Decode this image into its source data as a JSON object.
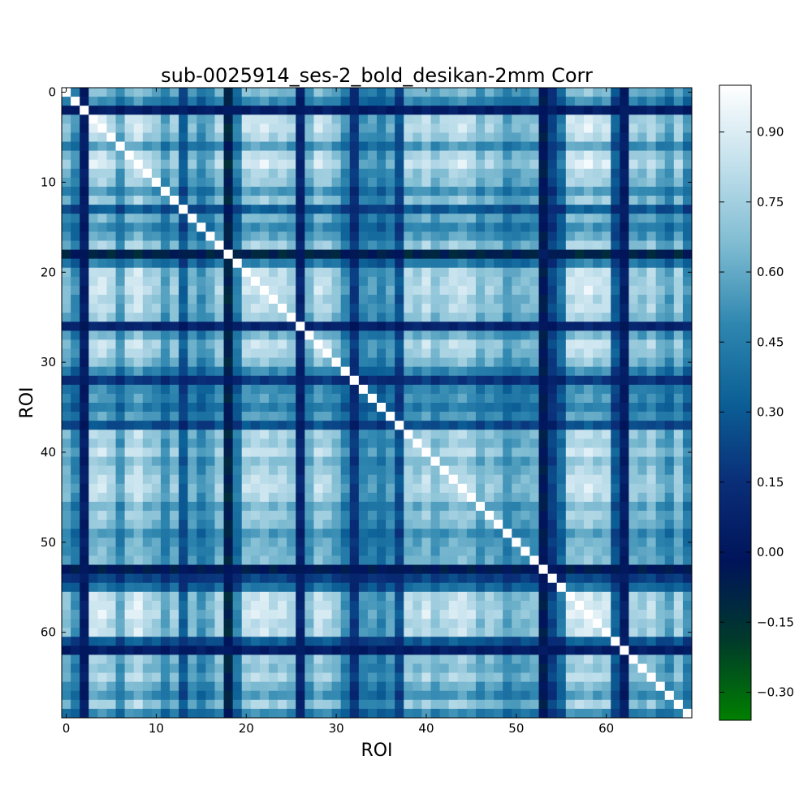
{
  "chart_data": {
    "type": "heatmap",
    "title": "sub-0025914_ses-2_bold_desikan-2mm Corr",
    "xlabel": "ROI",
    "ylabel": "ROI",
    "n": 70,
    "x_ticks": [
      "0",
      "10",
      "20",
      "30",
      "40",
      "50",
      "60"
    ],
    "y_ticks": [
      "0",
      "10",
      "20",
      "30",
      "40",
      "50",
      "60"
    ],
    "x_tick_values": [
      0,
      10,
      20,
      30,
      40,
      50,
      60
    ],
    "y_tick_values": [
      0,
      10,
      20,
      30,
      40,
      50,
      60
    ],
    "colorbar": {
      "vmin": -0.36,
      "vmax": 1.0,
      "ticks": [
        "0.90",
        "0.75",
        "0.60",
        "0.45",
        "0.30",
        "0.15",
        "0.00",
        "−0.15",
        "−0.30"
      ],
      "tick_values": [
        0.9,
        0.75,
        0.6,
        0.45,
        0.3,
        0.15,
        0.0,
        -0.15,
        -0.3
      ],
      "colormap": [
        "#008000",
        "#003a2a",
        "#00145a",
        "#0a2e78",
        "#0b5f96",
        "#2f87b0",
        "#7fbcd2",
        "#c2e0ec",
        "#ffffff"
      ]
    },
    "roi_profile": [
      0.72,
      0.55,
      0.05,
      0.9,
      0.92,
      0.85,
      0.62,
      0.88,
      0.95,
      0.82,
      0.8,
      0.6,
      0.78,
      0.35,
      0.7,
      0.55,
      0.65,
      0.82,
      -0.1,
      0.5,
      0.88,
      0.9,
      0.92,
      0.85,
      0.88,
      0.8,
      0.1,
      0.7,
      0.9,
      0.85,
      0.75,
      0.55,
      0.2,
      0.55,
      0.6,
      0.5,
      0.62,
      0.3,
      0.85,
      0.8,
      0.9,
      0.75,
      0.82,
      0.88,
      0.9,
      0.85,
      0.7,
      0.8,
      0.75,
      0.6,
      0.68,
      0.7,
      0.72,
      -0.05,
      0.25,
      0.45,
      0.9,
      0.92,
      0.95,
      0.88,
      0.9,
      0.35,
      0.05,
      0.8,
      0.75,
      0.85,
      0.7,
      0.6,
      0.82,
      0.55
    ]
  }
}
